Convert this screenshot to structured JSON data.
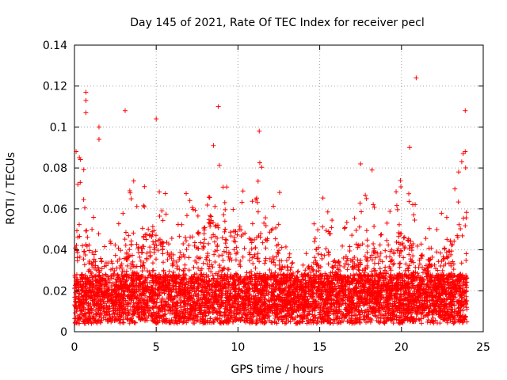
{
  "chart_data": {
    "type": "scatter",
    "title": "Day 145 of 2021, Rate Of TEC Index for receiver pecl",
    "xlabel": "GPS time / hours",
    "ylabel": "ROTI / TECUs",
    "xlim": [
      0,
      25
    ],
    "ylim": [
      0,
      0.14
    ],
    "x_ticks": [
      0,
      5,
      10,
      15,
      20,
      25
    ],
    "x_tick_labels": [
      "0",
      "5",
      "10",
      "15",
      "20",
      "25"
    ],
    "y_ticks": [
      0,
      0.02,
      0.04,
      0.06,
      0.08,
      0.1,
      0.12,
      0.14
    ],
    "y_tick_labels": [
      "0",
      "0.02",
      "0.04",
      "0.06",
      "0.08",
      "0.1",
      "0.12",
      "0.14"
    ],
    "grid": true,
    "marker": "+",
    "marker_color": "#ff0000",
    "approx_points": 6000,
    "note": "Dense ROTI scatter for 24 h; bulk of points between 0.005 and 0.03 TECU/min with sporadic excursions up to ~0.125.",
    "notable_points": [
      {
        "x": 0.7,
        "y": 0.117
      },
      {
        "x": 0.7,
        "y": 0.113
      },
      {
        "x": 0.7,
        "y": 0.107
      },
      {
        "x": 1.5,
        "y": 0.1
      },
      {
        "x": 1.5,
        "y": 0.094
      },
      {
        "x": 3.1,
        "y": 0.108
      },
      {
        "x": 5.0,
        "y": 0.104
      },
      {
        "x": 8.8,
        "y": 0.11
      },
      {
        "x": 11.3,
        "y": 0.098
      },
      {
        "x": 17.5,
        "y": 0.082
      },
      {
        "x": 18.2,
        "y": 0.079
      },
      {
        "x": 20.5,
        "y": 0.09
      },
      {
        "x": 20.9,
        "y": 0.124
      },
      {
        "x": 23.9,
        "y": 0.108
      },
      {
        "x": 23.9,
        "y": 0.088
      },
      {
        "x": 0.1,
        "y": 0.088
      },
      {
        "x": 0.3,
        "y": 0.085
      },
      {
        "x": 8.5,
        "y": 0.091
      }
    ],
    "activity_envelope": {
      "description": "Approximate upper envelope of the dense point cloud (hour, ROTI)",
      "points": [
        [
          0,
          0.06
        ],
        [
          0.5,
          0.08
        ],
        [
          1,
          0.05
        ],
        [
          2,
          0.04
        ],
        [
          3,
          0.05
        ],
        [
          3.5,
          0.07
        ],
        [
          4,
          0.06
        ],
        [
          5,
          0.07
        ],
        [
          6,
          0.05
        ],
        [
          7,
          0.06
        ],
        [
          8,
          0.07
        ],
        [
          8.7,
          0.09
        ],
        [
          9.5,
          0.06
        ],
        [
          10,
          0.07
        ],
        [
          11,
          0.06
        ],
        [
          11.5,
          0.08
        ],
        [
          12.5,
          0.06
        ],
        [
          13,
          0.04
        ],
        [
          14,
          0.03
        ],
        [
          15,
          0.06
        ],
        [
          16,
          0.04
        ],
        [
          17,
          0.05
        ],
        [
          18,
          0.06
        ],
        [
          19,
          0.04
        ],
        [
          20,
          0.07
        ],
        [
          21,
          0.05
        ],
        [
          22,
          0.04
        ],
        [
          23,
          0.06
        ],
        [
          23.9,
          0.08
        ],
        [
          24,
          0.05
        ]
      ]
    }
  }
}
